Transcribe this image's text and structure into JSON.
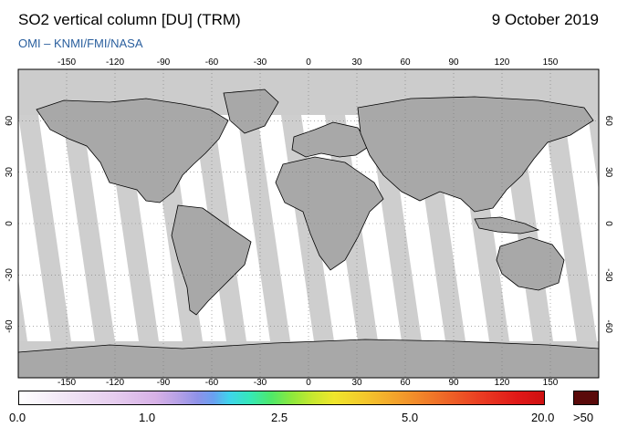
{
  "header": {
    "title": "SO2 vertical column [DU] (TRM)",
    "date": "9 October 2019",
    "subtitle": "OMI  –  KNMI/FMI/NASA"
  },
  "map": {
    "longitude_ticks": [
      "-150",
      "-120",
      "-90",
      "-60",
      "-30",
      "0",
      "30",
      "60",
      "90",
      "120",
      "150"
    ],
    "latitude_ticks": [
      "60",
      "30",
      "0",
      "-30",
      "-60"
    ],
    "colors": {
      "no_data": "#cccccc",
      "land_shade": "#a8a8a8",
      "ocean": "#ffffff",
      "coastline": "#000000"
    }
  },
  "colorbar": {
    "labels": [
      "0.0",
      "1.0",
      "2.5",
      "5.0",
      "20.0"
    ],
    "overflow_label": ">50",
    "overflow_color": "#5a0a0a"
  }
}
